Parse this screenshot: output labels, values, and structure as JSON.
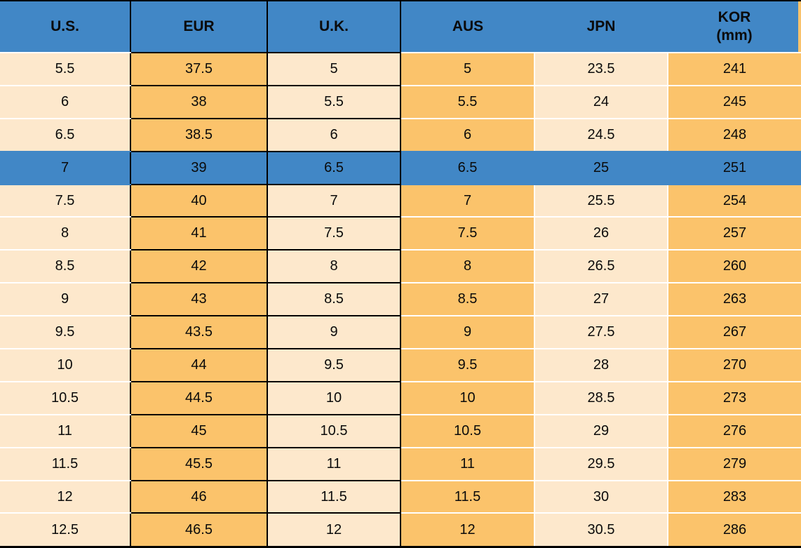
{
  "chart_data": {
    "type": "table",
    "title": "",
    "columns": [
      {
        "key": "us",
        "label": "U.S."
      },
      {
        "key": "eur",
        "label": "EUR"
      },
      {
        "key": "uk",
        "label": "U.K."
      },
      {
        "key": "aus",
        "label": "AUS"
      },
      {
        "key": "jpn",
        "label": "JPN"
      },
      {
        "key": "kor",
        "label": "KOR",
        "sublabel": "(mm)"
      }
    ],
    "rows": [
      [
        "5.5",
        "37.5",
        "5",
        "5",
        "23.5",
        "241"
      ],
      [
        "6",
        "38",
        "5.5",
        "5.5",
        "24",
        "245"
      ],
      [
        "6.5",
        "38.5",
        "6",
        "6",
        "24.5",
        "248"
      ],
      [
        "7",
        "39",
        "6.5",
        "6.5",
        "25",
        "251"
      ],
      [
        "7.5",
        "40",
        "7",
        "7",
        "25.5",
        "254"
      ],
      [
        "8",
        "41",
        "7.5",
        "7.5",
        "26",
        "257"
      ],
      [
        "8.5",
        "42",
        "8",
        "8",
        "26.5",
        "260"
      ],
      [
        "9",
        "43",
        "8.5",
        "8.5",
        "27",
        "263"
      ],
      [
        "9.5",
        "43.5",
        "9",
        "9",
        "27.5",
        "267"
      ],
      [
        "10",
        "44",
        "9.5",
        "9.5",
        "28",
        "270"
      ],
      [
        "10.5",
        "44.5",
        "10",
        "10",
        "28.5",
        "273"
      ],
      [
        "11",
        "45",
        "10.5",
        "10.5",
        "29",
        "276"
      ],
      [
        "11.5",
        "45.5",
        "11",
        "11",
        "29.5",
        "279"
      ],
      [
        "12",
        "46",
        "11.5",
        "11.5",
        "30",
        "283"
      ],
      [
        "12.5",
        "46.5",
        "12",
        "12",
        "30.5",
        "286"
      ]
    ],
    "highlight_row_index": 3,
    "highlighted_row_values": [
      "7",
      "39",
      "6.5",
      "6.5",
      "25",
      "251"
    ]
  },
  "colors": {
    "header_blue": "#4187c6",
    "row_highlight_blue": "#4187c6",
    "column_orange": "#fbc36b",
    "column_cream": "#fde8cc",
    "separator_white": "#ffffff",
    "border_black": "#000000",
    "text": "#0b0b0b"
  }
}
